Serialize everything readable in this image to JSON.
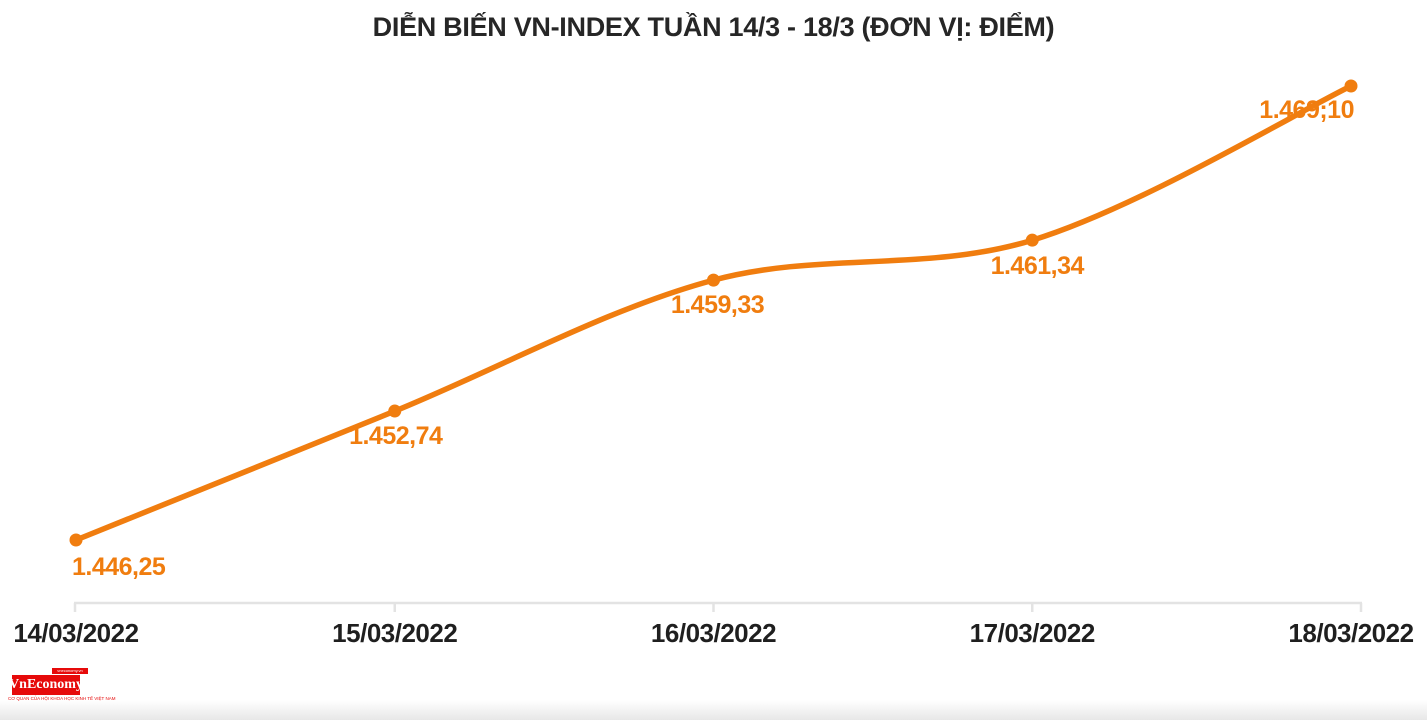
{
  "title": "DIỄN BIẾN VN-INDEX TUẦN 14/3 - 18/3 (ĐƠN VỊ: ĐIỂM)",
  "chart_data": {
    "type": "line",
    "title": "DIỄN BIẾN VN-INDEX TUẦN 14/3 - 18/3 (ĐƠN VỊ: ĐIỂM)",
    "series_name": "VN-Index",
    "unit": "ĐIỂM",
    "categories": [
      "14/03/2022",
      "15/03/2022",
      "16/03/2022",
      "17/03/2022",
      "18/03/2022"
    ],
    "values": [
      1446.25,
      1452.74,
      1459.33,
      1461.34,
      1469.1
    ],
    "point_labels": [
      "1.446,25",
      "1.452,74",
      "1.459,33",
      "1.461,34",
      "1.469;10"
    ],
    "ylim": [
      1443,
      1472
    ],
    "grid": false,
    "legend": false,
    "line_color": "#F07D0F",
    "point_label_color": "#F07D0F",
    "axis_color": "#E3E3E3",
    "axis_label_color": "#1F1F1F",
    "title_color": "#262626"
  },
  "logo": {
    "name": "VnEconomy",
    "tagline_top": "vneconomy.vn",
    "tagline_bottom": "CƠ QUAN CỦA HỘI KHOA HỌC KINH TẾ VIỆT NAM",
    "bg_color": "#E60A0A",
    "text_color": "#FFFFFF"
  }
}
